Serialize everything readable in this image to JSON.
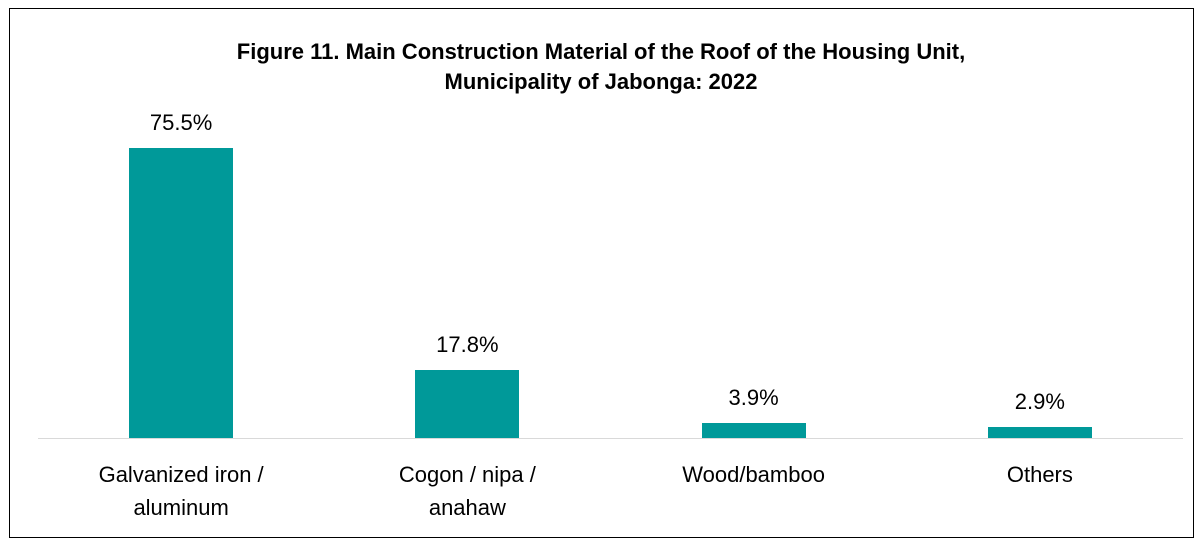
{
  "chart_data": {
    "type": "bar",
    "title": "Figure 11. Main Construction Material of the Roof of the Housing Unit, Municipality of Jabonga: 2022",
    "categories": [
      "Galvanized iron / aluminum",
      "Cogon / nipa / anahaw",
      "Wood/bamboo",
      "Others"
    ],
    "values": [
      75.5,
      17.8,
      3.9,
      2.9
    ],
    "value_labels": [
      "75.5%",
      "17.8%",
      "3.9%",
      "2.9%"
    ],
    "color": "#009999"
  }
}
